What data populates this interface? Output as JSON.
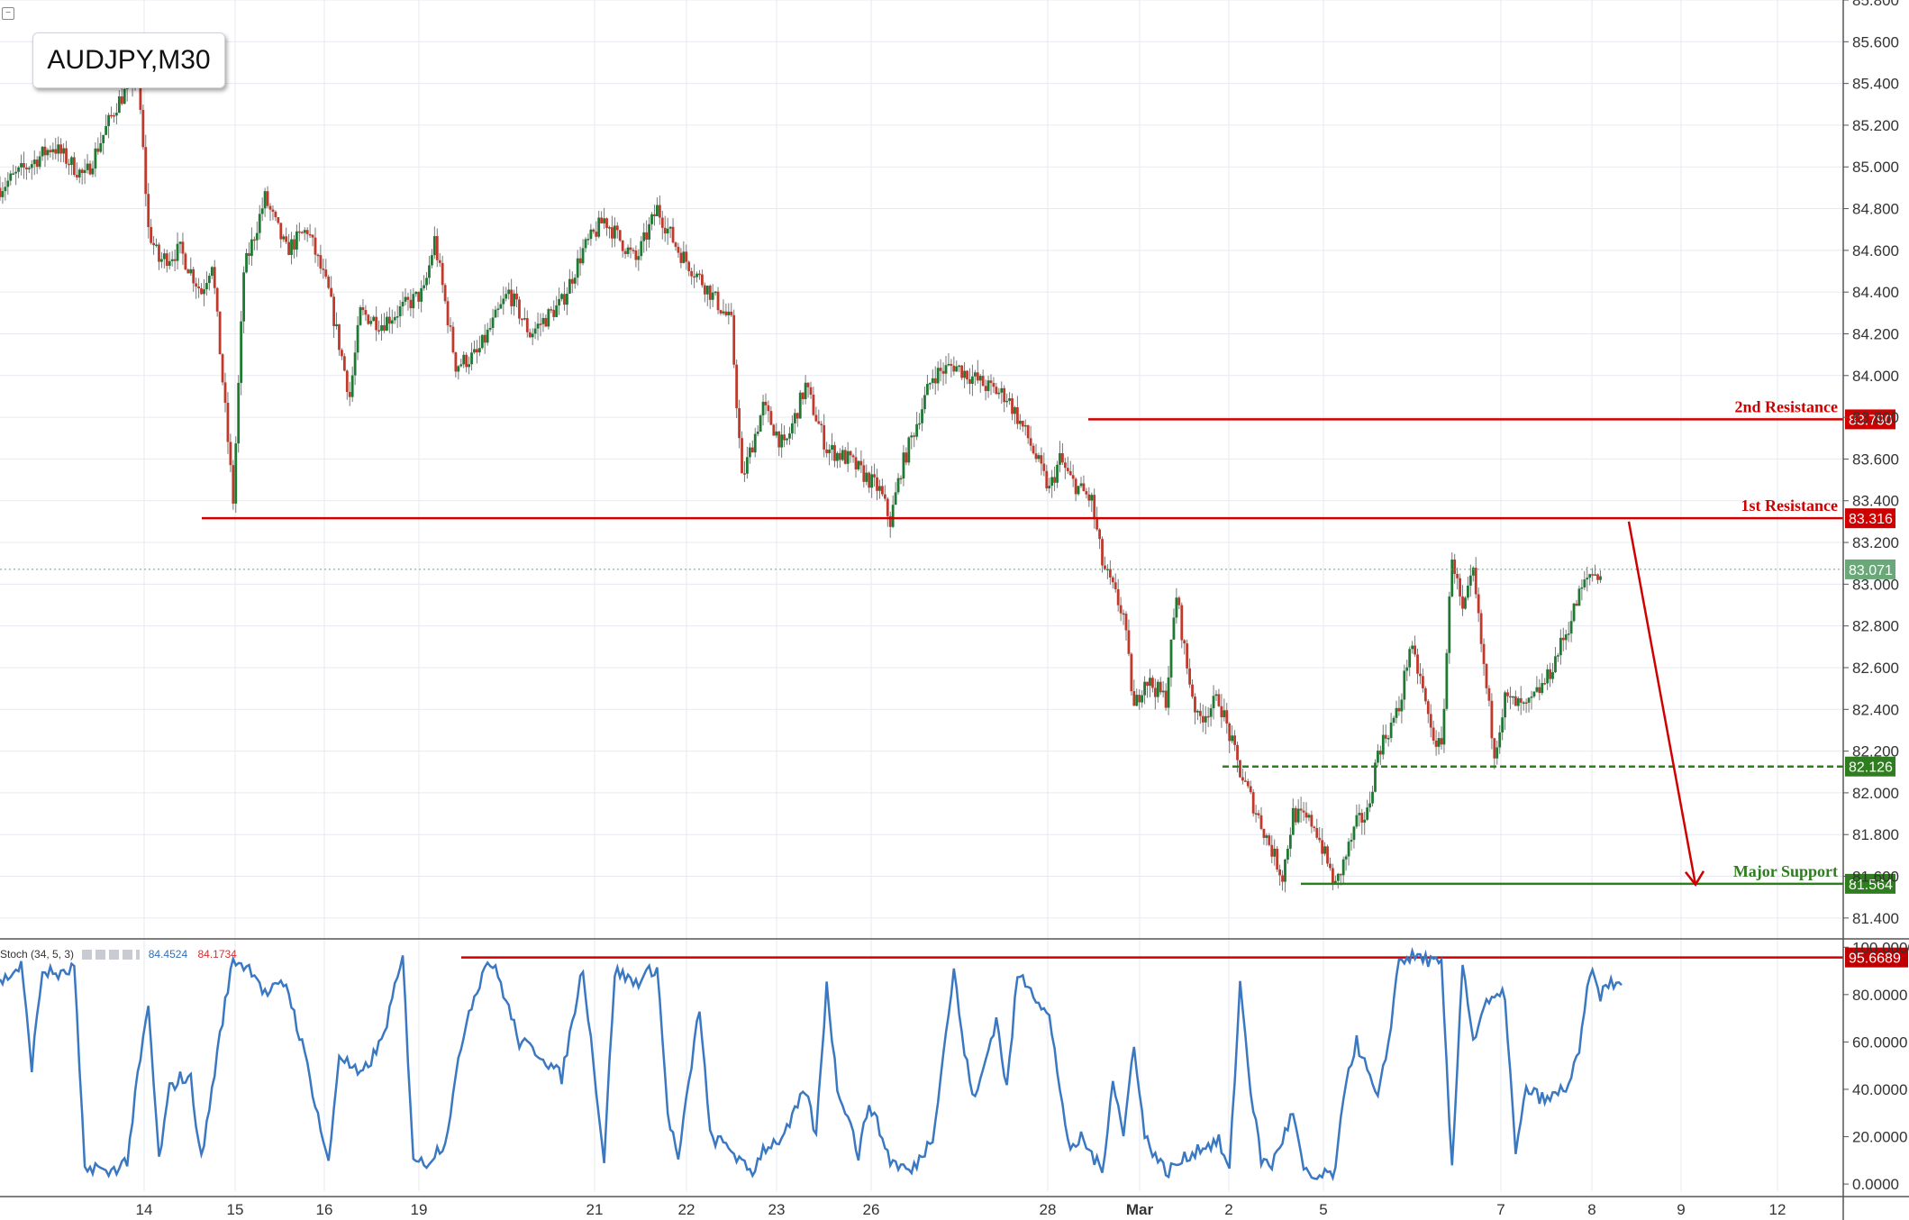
{
  "title": "AUDJPY,M30",
  "indicator": {
    "name": "Stoch (34, 5, 3)",
    "value_k": "84.4524",
    "value_d": "84.1734"
  },
  "colors": {
    "candle_up": "#1e7a32",
    "candle_down": "#c0392b",
    "resistance": "#d00000",
    "support": "#2e7d1e",
    "stoch": "#3a78c2",
    "grid": "#e6eaf0",
    "price_label": "#6aa879"
  },
  "chart_data": {
    "type": "candlestick",
    "symbol": "AUDJPY",
    "timeframe": "M30",
    "ylim": [
      81.3,
      85.8
    ],
    "y_ticks": [
      "85.800",
      "85.600",
      "85.400",
      "85.200",
      "85.000",
      "84.800",
      "84.600",
      "84.400",
      "84.200",
      "84.000",
      "83.800",
      "83.600",
      "83.400",
      "83.200",
      "83.000",
      "82.800",
      "82.600",
      "82.400",
      "82.200",
      "82.000",
      "81.800",
      "81.600",
      "81.400"
    ],
    "x_ticks": [
      "14",
      "15",
      "16",
      "19",
      "21",
      "22",
      "23",
      "26",
      "28",
      "Mar",
      "2",
      "5",
      "7",
      "8",
      "9",
      "12"
    ],
    "price_path": [
      [
        0,
        84.9
      ],
      [
        5,
        85.1
      ],
      [
        8,
        84.95
      ],
      [
        11,
        85.3
      ],
      [
        13,
        85.45
      ],
      [
        14,
        84.7
      ],
      [
        15,
        84.55
      ],
      [
        17,
        84.6
      ],
      [
        19,
        84.4
      ],
      [
        20,
        84.55
      ],
      [
        22,
        83.4
      ],
      [
        23,
        84.5
      ],
      [
        25,
        84.85
      ],
      [
        27,
        84.6
      ],
      [
        29,
        84.7
      ],
      [
        31,
        84.4
      ],
      [
        33,
        83.9
      ],
      [
        34,
        84.3
      ],
      [
        36,
        84.25
      ],
      [
        40,
        84.4
      ],
      [
        41,
        84.65
      ],
      [
        43,
        84.05
      ],
      [
        45,
        84.1
      ],
      [
        48,
        84.4
      ],
      [
        50,
        84.2
      ],
      [
        53,
        84.35
      ],
      [
        55,
        84.6
      ],
      [
        57,
        84.75
      ],
      [
        60,
        84.55
      ],
      [
        62,
        84.8
      ],
      [
        64,
        84.6
      ],
      [
        67,
        84.4
      ],
      [
        69,
        84.25
      ],
      [
        70,
        83.5
      ],
      [
        72,
        83.85
      ],
      [
        74,
        83.65
      ],
      [
        76,
        83.95
      ],
      [
        78,
        83.65
      ],
      [
        80,
        83.6
      ],
      [
        83,
        83.45
      ],
      [
        84,
        83.3
      ],
      [
        85,
        83.55
      ],
      [
        87,
        83.85
      ],
      [
        88,
        84.0
      ],
      [
        90,
        84.05
      ],
      [
        93,
        83.95
      ],
      [
        95,
        83.9
      ],
      [
        97,
        83.7
      ],
      [
        99,
        83.45
      ],
      [
        100,
        83.6
      ],
      [
        101,
        83.5
      ],
      [
        103,
        83.4
      ],
      [
        104,
        83.1
      ],
      [
        106,
        82.85
      ],
      [
        107,
        82.4
      ],
      [
        108,
        82.55
      ],
      [
        110,
        82.45
      ],
      [
        111,
        82.95
      ],
      [
        112,
        82.6
      ],
      [
        113,
        82.35
      ],
      [
        115,
        82.45
      ],
      [
        117,
        82.1
      ],
      [
        119,
        81.85
      ],
      [
        121,
        81.6
      ],
      [
        122,
        81.9
      ],
      [
        124,
        81.85
      ],
      [
        125,
        81.7
      ],
      [
        126,
        81.55
      ],
      [
        128,
        81.85
      ],
      [
        129,
        81.9
      ],
      [
        130,
        82.2
      ],
      [
        132,
        82.4
      ],
      [
        133,
        82.7
      ],
      [
        134,
        82.55
      ],
      [
        135,
        82.3
      ],
      [
        136,
        82.2
      ],
      [
        137,
        83.15
      ],
      [
        138,
        82.85
      ],
      [
        139,
        83.05
      ],
      [
        140,
        82.6
      ],
      [
        141,
        82.2
      ],
      [
        142,
        82.45
      ],
      [
        144,
        82.4
      ],
      [
        146,
        82.55
      ],
      [
        148,
        82.8
      ],
      [
        149,
        82.95
      ],
      [
        150,
        83.05
      ],
      [
        151,
        83.05
      ]
    ],
    "levels": [
      {
        "label": "2nd Resistance",
        "value": 83.79,
        "value_label": "83.790"
      },
      {
        "label": "1st Resistance",
        "value": 83.316,
        "value_label": "83.316"
      },
      {
        "label": "",
        "value": 82.126,
        "value_label": "82.126",
        "style": "dashed"
      },
      {
        "label": "Major Support",
        "value": 81.564,
        "value_label": "81.564"
      }
    ],
    "current_price": {
      "value": 83.071,
      "value_label": "83.071"
    },
    "projection_arrow": {
      "from": [
        154,
        83.3
      ],
      "to": [
        160,
        81.56
      ]
    },
    "stochastic": {
      "ylim": [
        -3,
        102
      ],
      "y_ticks": [
        "100.0000",
        "80.0000",
        "60.0000",
        "40.0000",
        "20.0000",
        "0.0000"
      ],
      "level": {
        "value": 95.6689,
        "value_label": "95.6689"
      },
      "path": [
        [
          0,
          85
        ],
        [
          2,
          92
        ],
        [
          3,
          50
        ],
        [
          4,
          90
        ],
        [
          6,
          88
        ],
        [
          7,
          92
        ],
        [
          8,
          5
        ],
        [
          9,
          8
        ],
        [
          10,
          4
        ],
        [
          12,
          10
        ],
        [
          13,
          45
        ],
        [
          14,
          75
        ],
        [
          15,
          10
        ],
        [
          16,
          40
        ],
        [
          17,
          45
        ],
        [
          18,
          44
        ],
        [
          19,
          10
        ],
        [
          21,
          70
        ],
        [
          22,
          95
        ],
        [
          24,
          90
        ],
        [
          25,
          80
        ],
        [
          27,
          85
        ],
        [
          29,
          50
        ],
        [
          31,
          8
        ],
        [
          32,
          55
        ],
        [
          34,
          45
        ],
        [
          36,
          60
        ],
        [
          38,
          95
        ],
        [
          39,
          12
        ],
        [
          40,
          8
        ],
        [
          42,
          18
        ],
        [
          44,
          70
        ],
        [
          46,
          95
        ],
        [
          47,
          88
        ],
        [
          49,
          60
        ],
        [
          51,
          55
        ],
        [
          53,
          45
        ],
        [
          55,
          92
        ],
        [
          57,
          10
        ],
        [
          58,
          90
        ],
        [
          60,
          85
        ],
        [
          62,
          92
        ],
        [
          63,
          30
        ],
        [
          64,
          10
        ],
        [
          66,
          75
        ],
        [
          67,
          20
        ],
        [
          69,
          15
        ],
        [
          70,
          8
        ],
        [
          71,
          5
        ],
        [
          72,
          15
        ],
        [
          74,
          20
        ],
        [
          76,
          40
        ],
        [
          77,
          20
        ],
        [
          78,
          85
        ],
        [
          79,
          40
        ],
        [
          80,
          30
        ],
        [
          81,
          12
        ],
        [
          82,
          35
        ],
        [
          84,
          10
        ],
        [
          86,
          5
        ],
        [
          88,
          20
        ],
        [
          90,
          90
        ],
        [
          91,
          55
        ],
        [
          92,
          35
        ],
        [
          94,
          70
        ],
        [
          95,
          40
        ],
        [
          96,
          88
        ],
        [
          97,
          85
        ],
        [
          99,
          70
        ],
        [
          101,
          12
        ],
        [
          102,
          20
        ],
        [
          104,
          5
        ],
        [
          105,
          45
        ],
        [
          106,
          20
        ],
        [
          107,
          60
        ],
        [
          108,
          20
        ],
        [
          110,
          5
        ],
        [
          111,
          8
        ],
        [
          113,
          15
        ],
        [
          115,
          18
        ],
        [
          116,
          5
        ],
        [
          117,
          85
        ],
        [
          118,
          40
        ],
        [
          119,
          10
        ],
        [
          120,
          8
        ],
        [
          122,
          30
        ],
        [
          123,
          5
        ],
        [
          124,
          2
        ],
        [
          126,
          5
        ],
        [
          127,
          45
        ],
        [
          128,
          60
        ],
        [
          130,
          35
        ],
        [
          131,
          60
        ],
        [
          132,
          95
        ],
        [
          134,
          96
        ],
        [
          135,
          94
        ],
        [
          136,
          92
        ],
        [
          137,
          5
        ],
        [
          138,
          95
        ],
        [
          139,
          60
        ],
        [
          140,
          75
        ],
        [
          142,
          80
        ],
        [
          143,
          12
        ],
        [
          144,
          40
        ],
        [
          146,
          35
        ],
        [
          148,
          42
        ],
        [
          149,
          55
        ],
        [
          150,
          90
        ],
        [
          151,
          80
        ],
        [
          152,
          85
        ],
        [
          153,
          84
        ]
      ]
    }
  }
}
